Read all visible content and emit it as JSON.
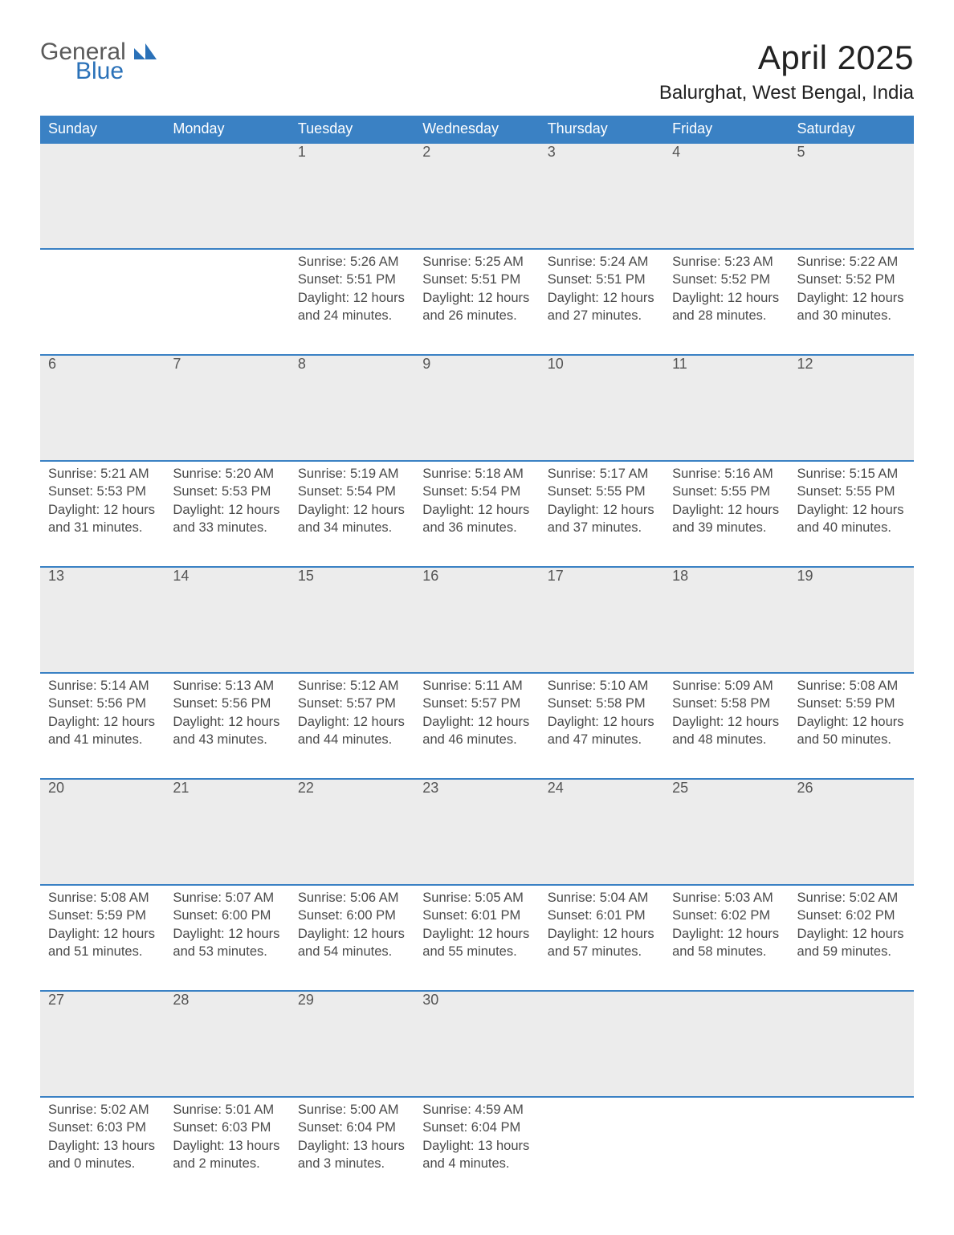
{
  "brand": {
    "part1": "General",
    "part2": "Blue"
  },
  "title": "April 2025",
  "location": "Balurghat, West Bengal, India",
  "colors": {
    "header_blue": "#3a81c4",
    "row_grey": "#ececec",
    "logo_blue": "#2a71b8",
    "logo_grey": "#5a5a5a",
    "border_blue": "#3a81c4",
    "background": "#ffffff",
    "text": "#333333"
  },
  "typography": {
    "title_fontsize_pt": 32,
    "location_fontsize_pt": 18,
    "header_fontsize_pt": 14,
    "daynum_fontsize_pt": 14,
    "detail_fontsize_pt": 12,
    "font_family": "Segoe UI / Arial"
  },
  "calendar": {
    "type": "table",
    "columns": [
      "Sunday",
      "Monday",
      "Tuesday",
      "Wednesday",
      "Thursday",
      "Friday",
      "Saturday"
    ],
    "leading_blanks": 2,
    "days": [
      {
        "n": 1,
        "sunrise": "5:26 AM",
        "sunset": "5:51 PM",
        "day_h": 12,
        "day_m": 24
      },
      {
        "n": 2,
        "sunrise": "5:25 AM",
        "sunset": "5:51 PM",
        "day_h": 12,
        "day_m": 26
      },
      {
        "n": 3,
        "sunrise": "5:24 AM",
        "sunset": "5:51 PM",
        "day_h": 12,
        "day_m": 27
      },
      {
        "n": 4,
        "sunrise": "5:23 AM",
        "sunset": "5:52 PM",
        "day_h": 12,
        "day_m": 28
      },
      {
        "n": 5,
        "sunrise": "5:22 AM",
        "sunset": "5:52 PM",
        "day_h": 12,
        "day_m": 30
      },
      {
        "n": 6,
        "sunrise": "5:21 AM",
        "sunset": "5:53 PM",
        "day_h": 12,
        "day_m": 31
      },
      {
        "n": 7,
        "sunrise": "5:20 AM",
        "sunset": "5:53 PM",
        "day_h": 12,
        "day_m": 33
      },
      {
        "n": 8,
        "sunrise": "5:19 AM",
        "sunset": "5:54 PM",
        "day_h": 12,
        "day_m": 34
      },
      {
        "n": 9,
        "sunrise": "5:18 AM",
        "sunset": "5:54 PM",
        "day_h": 12,
        "day_m": 36
      },
      {
        "n": 10,
        "sunrise": "5:17 AM",
        "sunset": "5:55 PM",
        "day_h": 12,
        "day_m": 37
      },
      {
        "n": 11,
        "sunrise": "5:16 AM",
        "sunset": "5:55 PM",
        "day_h": 12,
        "day_m": 39
      },
      {
        "n": 12,
        "sunrise": "5:15 AM",
        "sunset": "5:55 PM",
        "day_h": 12,
        "day_m": 40
      },
      {
        "n": 13,
        "sunrise": "5:14 AM",
        "sunset": "5:56 PM",
        "day_h": 12,
        "day_m": 41
      },
      {
        "n": 14,
        "sunrise": "5:13 AM",
        "sunset": "5:56 PM",
        "day_h": 12,
        "day_m": 43
      },
      {
        "n": 15,
        "sunrise": "5:12 AM",
        "sunset": "5:57 PM",
        "day_h": 12,
        "day_m": 44
      },
      {
        "n": 16,
        "sunrise": "5:11 AM",
        "sunset": "5:57 PM",
        "day_h": 12,
        "day_m": 46
      },
      {
        "n": 17,
        "sunrise": "5:10 AM",
        "sunset": "5:58 PM",
        "day_h": 12,
        "day_m": 47
      },
      {
        "n": 18,
        "sunrise": "5:09 AM",
        "sunset": "5:58 PM",
        "day_h": 12,
        "day_m": 48
      },
      {
        "n": 19,
        "sunrise": "5:08 AM",
        "sunset": "5:59 PM",
        "day_h": 12,
        "day_m": 50
      },
      {
        "n": 20,
        "sunrise": "5:08 AM",
        "sunset": "5:59 PM",
        "day_h": 12,
        "day_m": 51
      },
      {
        "n": 21,
        "sunrise": "5:07 AM",
        "sunset": "6:00 PM",
        "day_h": 12,
        "day_m": 53
      },
      {
        "n": 22,
        "sunrise": "5:06 AM",
        "sunset": "6:00 PM",
        "day_h": 12,
        "day_m": 54
      },
      {
        "n": 23,
        "sunrise": "5:05 AM",
        "sunset": "6:01 PM",
        "day_h": 12,
        "day_m": 55
      },
      {
        "n": 24,
        "sunrise": "5:04 AM",
        "sunset": "6:01 PM",
        "day_h": 12,
        "day_m": 57
      },
      {
        "n": 25,
        "sunrise": "5:03 AM",
        "sunset": "6:02 PM",
        "day_h": 12,
        "day_m": 58
      },
      {
        "n": 26,
        "sunrise": "5:02 AM",
        "sunset": "6:02 PM",
        "day_h": 12,
        "day_m": 59
      },
      {
        "n": 27,
        "sunrise": "5:02 AM",
        "sunset": "6:03 PM",
        "day_h": 13,
        "day_m": 0
      },
      {
        "n": 28,
        "sunrise": "5:01 AM",
        "sunset": "6:03 PM",
        "day_h": 13,
        "day_m": 2
      },
      {
        "n": 29,
        "sunrise": "5:00 AM",
        "sunset": "6:04 PM",
        "day_h": 13,
        "day_m": 3
      },
      {
        "n": 30,
        "sunrise": "4:59 AM",
        "sunset": "6:04 PM",
        "day_h": 13,
        "day_m": 4
      }
    ],
    "labels": {
      "sunrise": "Sunrise:",
      "sunset": "Sunset:",
      "daylight": "Daylight:",
      "hours_word": "hours",
      "and_word": "and",
      "minutes_word": "minutes."
    }
  }
}
